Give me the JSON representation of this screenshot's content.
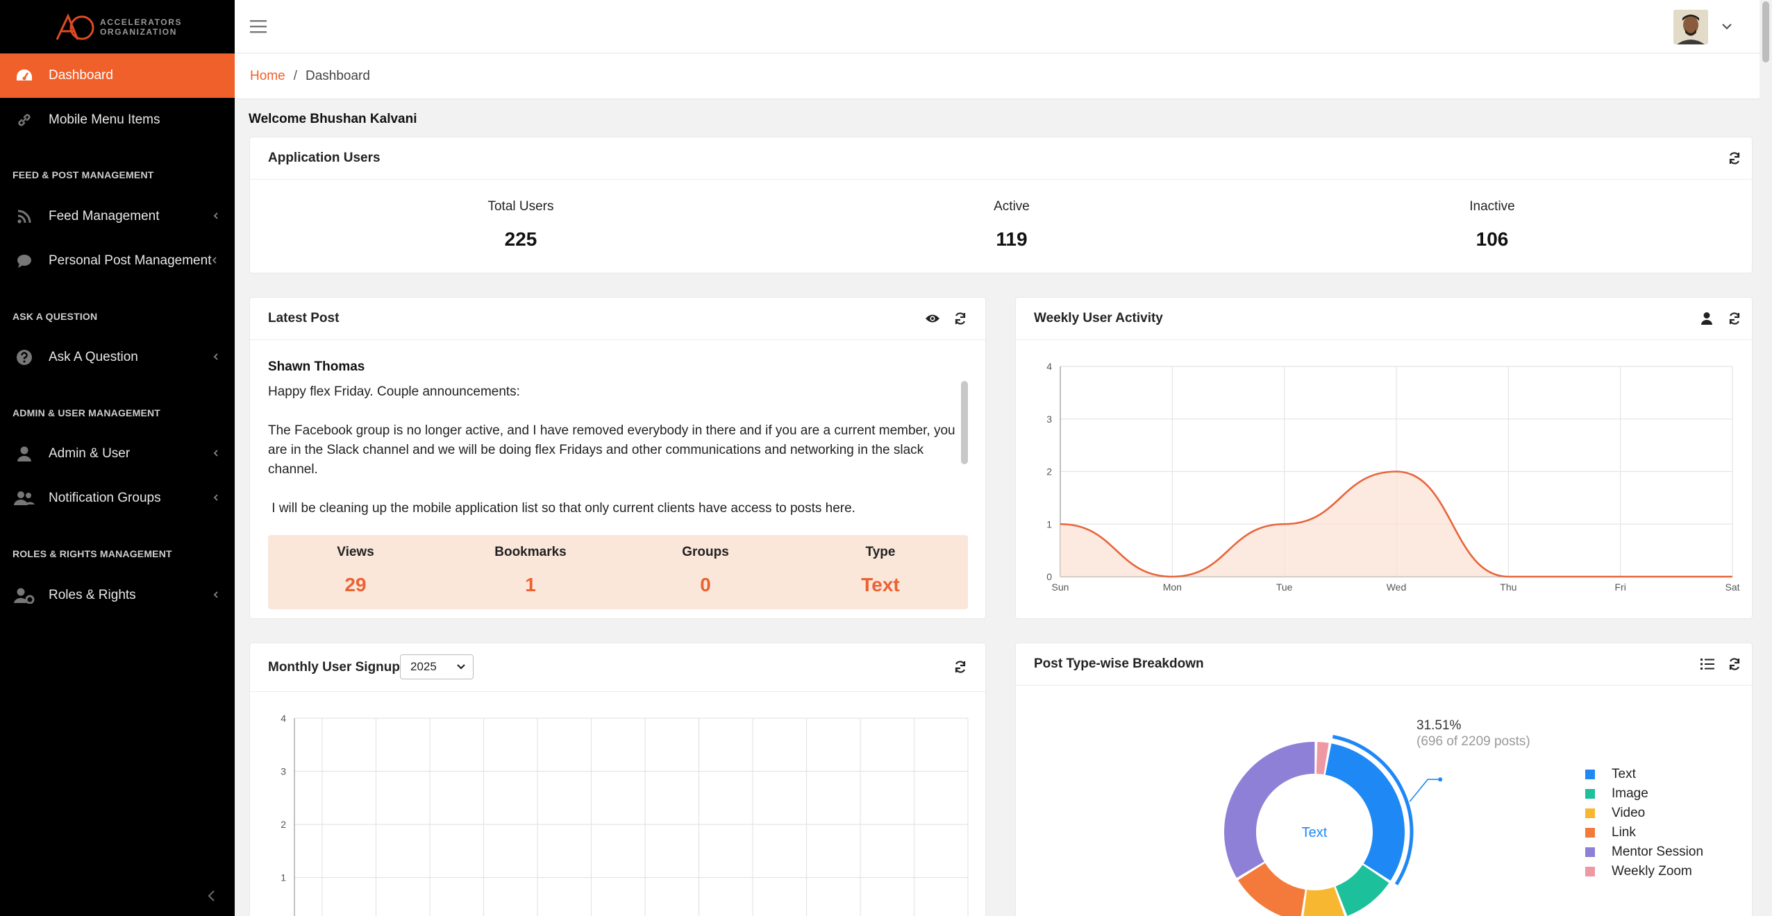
{
  "brand": {
    "line1": "ACCELERATORS",
    "line2": "ORGANIZATION",
    "logo_letters": "AO",
    "accent": "#f0602a"
  },
  "sidebar": {
    "items": [
      {
        "label": "Dashboard",
        "icon": "dashboard-icon",
        "active": true
      },
      {
        "label": "Mobile Menu Items",
        "icon": "link-icon"
      },
      {
        "label": "Feed Management",
        "icon": "rss-icon"
      },
      {
        "label": "Personal Post Management",
        "icon": "comment-icon"
      },
      {
        "label": "Ask A Question",
        "icon": "question-icon"
      },
      {
        "label": "Admin & User",
        "icon": "user-icon"
      },
      {
        "label": "Notification Groups",
        "icon": "users-icon"
      },
      {
        "label": "Roles & Rights",
        "icon": "user-gear-icon"
      }
    ],
    "sections": [
      "FEED & POST MANAGEMENT",
      "ASK A QUESTION",
      "ADMIN & USER MANAGEMENT",
      "ROLES & RIGHTS MANAGEMENT"
    ]
  },
  "breadcrumb": {
    "home": "Home",
    "separator": "/",
    "current": "Dashboard"
  },
  "welcome": "Welcome Bhushan Kalvani",
  "app_users": {
    "title": "Application Users",
    "stats": [
      {
        "label": "Total Users",
        "value": "225"
      },
      {
        "label": "Active",
        "value": "119"
      },
      {
        "label": "Inactive",
        "value": "106"
      }
    ]
  },
  "latest_post": {
    "title": "Latest Post",
    "author": "Shawn Thomas",
    "paragraphs": [
      "Happy flex Friday. Couple announcements:",
      "The Facebook group is no longer active, and I have removed everybody in there and if you are a current member, you are in the Slack channel and we will be doing flex Fridays and other communications and networking in the slack channel.",
      " I will be cleaning up the mobile application list so that only current clients have access to posts here."
    ],
    "stats": [
      {
        "label": "Views",
        "value": "29"
      },
      {
        "label": "Bookmarks",
        "value": "1"
      },
      {
        "label": "Groups",
        "value": "0"
      },
      {
        "label": "Type",
        "value": "Text"
      }
    ]
  },
  "weekly_activity": {
    "title": "Weekly User Activity"
  },
  "monthly_signups": {
    "title": "Monthly User Signups",
    "year": "2025"
  },
  "post_breakdown": {
    "title": "Post Type-wise Breakdown",
    "center_label": "Text",
    "callout_pct": "31.51%",
    "callout_detail": "(696 of 2209 posts)"
  },
  "chart_data": [
    {
      "type": "area",
      "name": "weekly_activity",
      "categories": [
        "Sun",
        "Mon",
        "Tue",
        "Wed",
        "Thu",
        "Fri",
        "Sat"
      ],
      "values": [
        1,
        0,
        1,
        2,
        0,
        0,
        0
      ],
      "ylim": [
        0,
        4
      ],
      "yticks": [
        "0",
        "1",
        "2",
        "3",
        "4"
      ],
      "grid": true,
      "color": "#e8643a"
    },
    {
      "type": "line",
      "name": "monthly_signups",
      "ylim": [
        0,
        4
      ],
      "yticks": [
        "1",
        "2",
        "3",
        "4"
      ],
      "grid": true
    },
    {
      "type": "pie",
      "name": "post_breakdown",
      "labels": [
        "Text",
        "Image",
        "Video",
        "Link",
        "Mentor Session",
        "Weekly Zoom"
      ],
      "values": [
        31.51,
        10,
        8,
        14,
        34,
        2.49
      ],
      "colors": [
        "#1e88f5",
        "#1cc09a",
        "#f7b731",
        "#f37a3a",
        "#8e80d6",
        "#ee98a4"
      ],
      "legend": "right"
    }
  ]
}
